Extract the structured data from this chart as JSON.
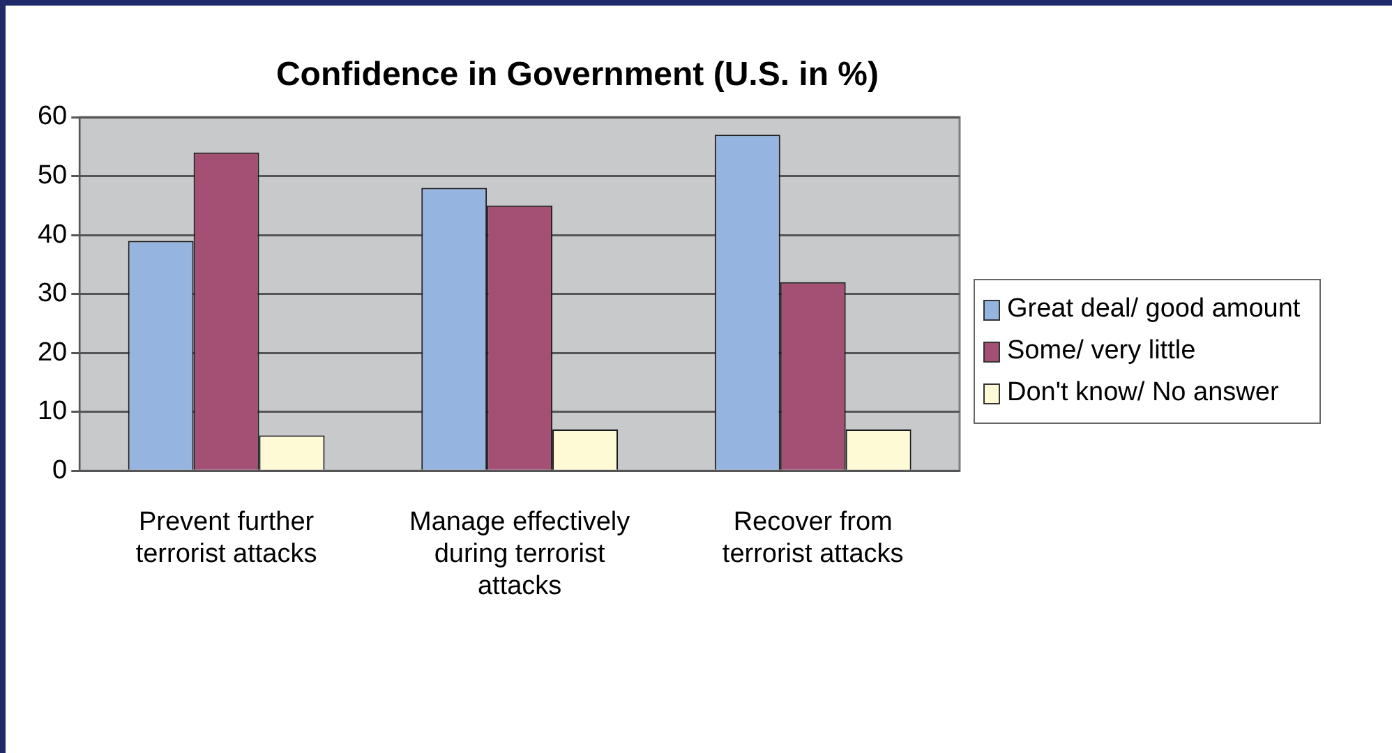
{
  "chart_data": {
    "type": "bar",
    "title": "Confidence in Government (U.S. in %)",
    "categories": [
      "Prevent further terrorist attacks",
      "Manage effectively during terrorist attacks",
      "Recover from terrorist attacks"
    ],
    "series": [
      {
        "name": "Great deal/ good amount",
        "color": "#95b4df",
        "values": [
          39,
          48,
          57
        ]
      },
      {
        "name": "Some/ very little",
        "color": "#a35074",
        "values": [
          54,
          45,
          32
        ]
      },
      {
        "name": "Don't know/ No answer",
        "color": "#fffad6",
        "values": [
          6,
          7,
          7
        ]
      }
    ],
    "ylim": [
      0,
      60
    ],
    "yticks": [
      0,
      10,
      20,
      30,
      40,
      50,
      60
    ],
    "grid": "y",
    "legend": "right"
  }
}
